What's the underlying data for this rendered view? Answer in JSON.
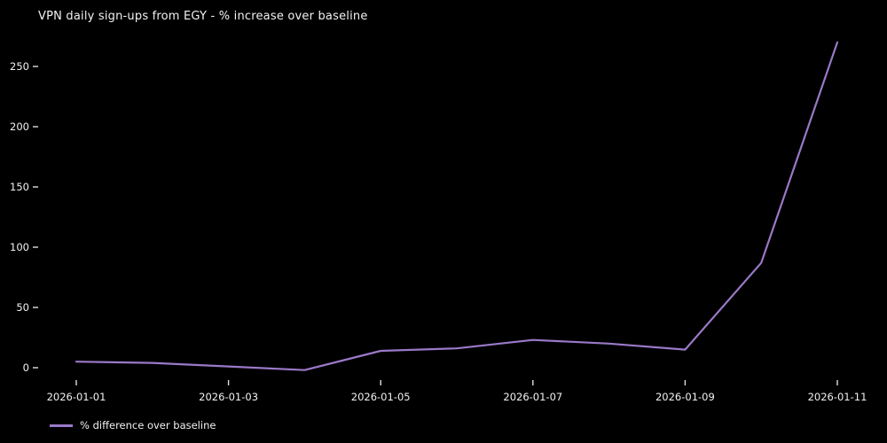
{
  "colors": {
    "background": "#000000",
    "text": "#f2f2f2",
    "tick": "#e0e0e0",
    "line": "#9a79c8"
  },
  "legend": {
    "label": "% difference over baseline"
  },
  "chart_data": {
    "type": "line",
    "title": "VPN daily sign-ups from EGY - % increase over baseline",
    "x": [
      "2026-01-01",
      "2026-01-02",
      "2026-01-03",
      "2026-01-04",
      "2026-01-05",
      "2026-01-06",
      "2026-01-07",
      "2026-01-08",
      "2026-01-09",
      "2026-01-10",
      "2026-01-11"
    ],
    "series": [
      {
        "name": "% difference over baseline",
        "values": [
          5,
          4,
          1,
          -2,
          14,
          16,
          23,
          20,
          15,
          87,
          270
        ]
      }
    ],
    "xlabel": "",
    "ylabel": "",
    "yticks": [
      0,
      50,
      100,
      150,
      200,
      250
    ],
    "xtick_labels": [
      "2026-01-01",
      "2026-01-03",
      "2026-01-05",
      "2026-01-07",
      "2026-01-09",
      "2026-01-11"
    ],
    "ylim": [
      -20,
      285
    ],
    "grid": false,
    "legend_position": "lower left"
  }
}
